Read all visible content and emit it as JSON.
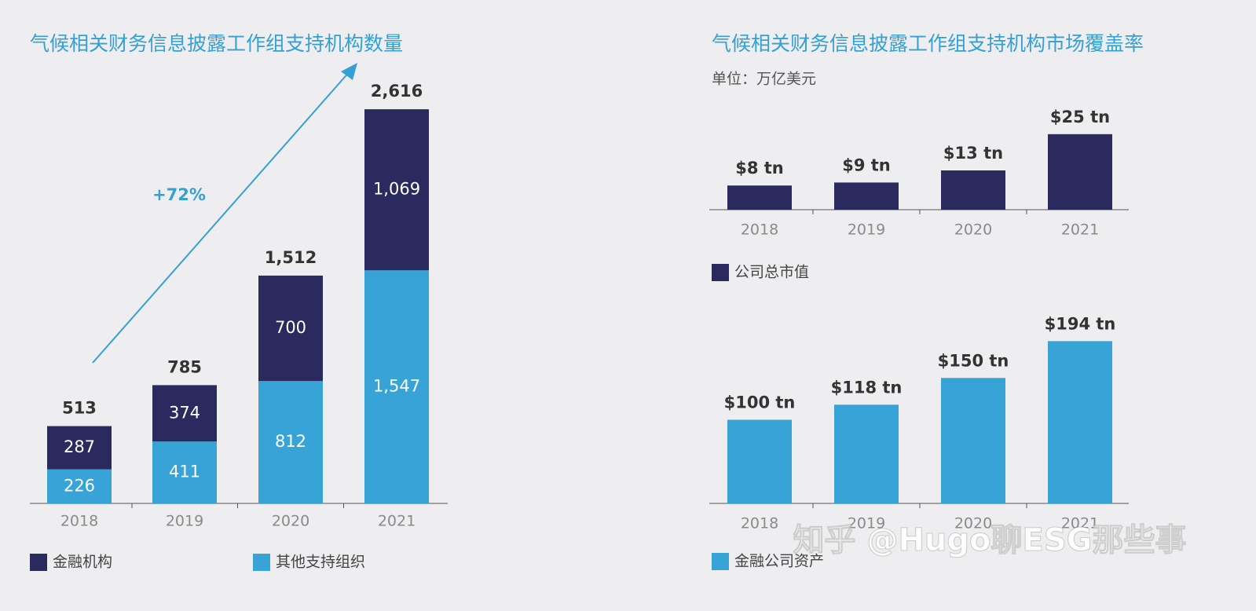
{
  "chart_data": [
    {
      "type": "stacked_bar",
      "title": "气候相关财务信息披露工作组支持机构数量",
      "categories": [
        "2018",
        "2019",
        "2020",
        "2021"
      ],
      "series": [
        {
          "name": "金融机构",
          "color": "#2b2a5f",
          "values": [
            287,
            374,
            700,
            1069
          ],
          "value_labels": [
            "287",
            "374",
            "700",
            "1,069"
          ]
        },
        {
          "name": "其他支持组织",
          "color": "#38a3d6",
          "values": [
            226,
            411,
            812,
            1547
          ],
          "value_labels": [
            "226",
            "411",
            "812",
            "1,547"
          ]
        }
      ],
      "totals": [
        513,
        785,
        1512,
        2616
      ],
      "total_labels": [
        "513",
        "785",
        "1,512",
        "2,616"
      ],
      "annotation": "+72%",
      "ylim": [
        0,
        2700
      ]
    },
    {
      "type": "bar",
      "title": "气候相关财务信息披露工作组支持机构市场覆盖率",
      "subtitle": "单位：万亿美元",
      "categories": [
        "2018",
        "2019",
        "2020",
        "2021"
      ],
      "series": [
        {
          "name": "公司总市值",
          "color": "#2b2a5f",
          "values": [
            8,
            9,
            13,
            25
          ],
          "value_labels": [
            "$8 tn",
            "$9 tn",
            "$13 tn",
            "$25 tn"
          ]
        }
      ],
      "ylim": [
        0,
        26
      ]
    },
    {
      "type": "bar",
      "categories": [
        "2018",
        "2019",
        "2020",
        "2021"
      ],
      "series": [
        {
          "name": "金融公司资产",
          "color": "#38a3d6",
          "values": [
            100,
            118,
            150,
            194
          ],
          "value_labels": [
            "$100 tn",
            "$118 tn",
            "$150 tn",
            "$194 tn"
          ]
        }
      ],
      "ylim": [
        0,
        200
      ]
    }
  ],
  "watermark": "知乎 @Hugo聊ESG那些事"
}
